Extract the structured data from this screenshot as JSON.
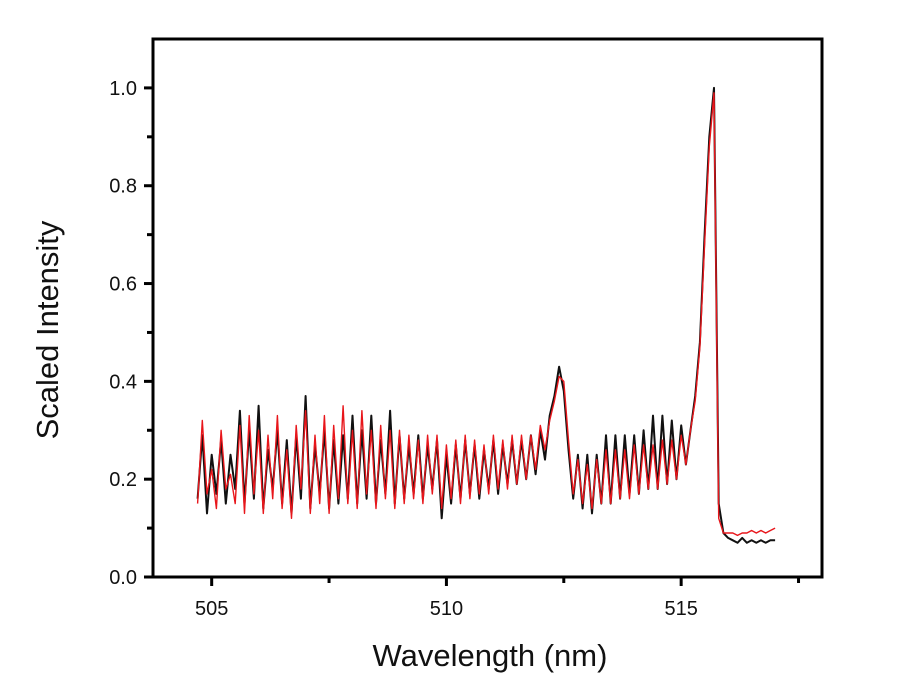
{
  "chart_data": {
    "type": "line",
    "title": "",
    "xlabel": "Wavelength (nm)",
    "ylabel": "Scaled Intensity",
    "xlim": [
      503.75,
      518
    ],
    "ylim": [
      0,
      1.1
    ],
    "xticks": [
      "505",
      "510",
      "515"
    ],
    "xtick_values": [
      505,
      510,
      515
    ],
    "xminor": [
      507.5,
      512.5,
      517.5
    ],
    "yticks": [
      "0.0",
      "0.2",
      "0.4",
      "0.6",
      "0.8",
      "1.0"
    ],
    "ytick_values": [
      0,
      0.2,
      0.4,
      0.6,
      0.8,
      1.0
    ],
    "grid": false,
    "legend": "none",
    "x": [
      504.7,
      504.8,
      504.9,
      505.0,
      505.1,
      505.2,
      505.3,
      505.4,
      505.5,
      505.6,
      505.7,
      505.8,
      505.9,
      506.0,
      506.1,
      506.2,
      506.3,
      506.4,
      506.5,
      506.6,
      506.7,
      506.8,
      506.9,
      507.0,
      507.1,
      507.2,
      507.3,
      507.4,
      507.5,
      507.6,
      507.7,
      507.8,
      507.9,
      508.0,
      508.1,
      508.2,
      508.3,
      508.4,
      508.5,
      508.6,
      508.7,
      508.8,
      508.9,
      509.0,
      509.1,
      509.2,
      509.3,
      509.4,
      509.5,
      509.6,
      509.7,
      509.8,
      509.9,
      510.0,
      510.1,
      510.2,
      510.3,
      510.4,
      510.5,
      510.6,
      510.7,
      510.8,
      510.9,
      511.0,
      511.1,
      511.2,
      511.3,
      511.4,
      511.5,
      511.6,
      511.7,
      511.8,
      511.9,
      512.0,
      512.1,
      512.2,
      512.3,
      512.4,
      512.5,
      512.6,
      512.7,
      512.8,
      512.9,
      513.0,
      513.1,
      513.2,
      513.3,
      513.4,
      513.5,
      513.6,
      513.7,
      513.8,
      513.9,
      514.0,
      514.1,
      514.2,
      514.3,
      514.4,
      514.5,
      514.6,
      514.7,
      514.8,
      514.9,
      515.0,
      515.1,
      515.2,
      515.3,
      515.4,
      515.5,
      515.6,
      515.7,
      515.8,
      515.9,
      516.0,
      516.1,
      516.2,
      516.3,
      516.4,
      516.5,
      516.6,
      516.7,
      516.8,
      516.9,
      517.0
    ],
    "series": [
      {
        "color": "#111111",
        "values": [
          0.16,
          0.29,
          0.13,
          0.25,
          0.17,
          0.28,
          0.15,
          0.25,
          0.18,
          0.34,
          0.15,
          0.3,
          0.16,
          0.35,
          0.14,
          0.26,
          0.18,
          0.3,
          0.15,
          0.28,
          0.13,
          0.29,
          0.16,
          0.37,
          0.14,
          0.27,
          0.17,
          0.3,
          0.14,
          0.28,
          0.15,
          0.29,
          0.16,
          0.33,
          0.15,
          0.3,
          0.16,
          0.33,
          0.15,
          0.28,
          0.17,
          0.34,
          0.15,
          0.29,
          0.16,
          0.27,
          0.17,
          0.29,
          0.16,
          0.27,
          0.18,
          0.28,
          0.12,
          0.25,
          0.15,
          0.27,
          0.16,
          0.28,
          0.17,
          0.27,
          0.16,
          0.26,
          0.18,
          0.28,
          0.17,
          0.27,
          0.19,
          0.28,
          0.19,
          0.28,
          0.2,
          0.29,
          0.21,
          0.3,
          0.24,
          0.33,
          0.37,
          0.43,
          0.38,
          0.26,
          0.16,
          0.25,
          0.14,
          0.25,
          0.13,
          0.25,
          0.15,
          0.29,
          0.15,
          0.29,
          0.16,
          0.29,
          0.17,
          0.29,
          0.17,
          0.3,
          0.18,
          0.33,
          0.18,
          0.33,
          0.19,
          0.32,
          0.2,
          0.31,
          0.23,
          0.3,
          0.37,
          0.48,
          0.7,
          0.9,
          1.0,
          0.15,
          0.09,
          0.08,
          0.075,
          0.07,
          0.08,
          0.07,
          0.075,
          0.07,
          0.075,
          0.07,
          0.075,
          0.075
        ]
      },
      {
        "color": "#e8161b",
        "values": [
          0.15,
          0.32,
          0.17,
          0.22,
          0.14,
          0.3,
          0.18,
          0.21,
          0.15,
          0.31,
          0.13,
          0.33,
          0.17,
          0.3,
          0.13,
          0.29,
          0.16,
          0.33,
          0.14,
          0.26,
          0.12,
          0.31,
          0.18,
          0.34,
          0.13,
          0.29,
          0.15,
          0.33,
          0.13,
          0.31,
          0.16,
          0.35,
          0.15,
          0.3,
          0.14,
          0.34,
          0.17,
          0.3,
          0.14,
          0.31,
          0.16,
          0.3,
          0.14,
          0.3,
          0.15,
          0.29,
          0.16,
          0.28,
          0.15,
          0.29,
          0.17,
          0.29,
          0.14,
          0.27,
          0.16,
          0.28,
          0.15,
          0.29,
          0.16,
          0.28,
          0.17,
          0.27,
          0.17,
          0.29,
          0.18,
          0.28,
          0.18,
          0.29,
          0.19,
          0.29,
          0.2,
          0.29,
          0.22,
          0.31,
          0.26,
          0.32,
          0.36,
          0.41,
          0.4,
          0.28,
          0.17,
          0.24,
          0.15,
          0.23,
          0.14,
          0.24,
          0.15,
          0.26,
          0.15,
          0.26,
          0.16,
          0.26,
          0.16,
          0.27,
          0.17,
          0.27,
          0.18,
          0.27,
          0.18,
          0.28,
          0.19,
          0.28,
          0.2,
          0.29,
          0.23,
          0.3,
          0.36,
          0.47,
          0.68,
          0.88,
          0.99,
          0.12,
          0.09,
          0.09,
          0.09,
          0.085,
          0.09,
          0.09,
          0.095,
          0.09,
          0.095,
          0.09,
          0.095,
          0.1
        ]
      }
    ]
  }
}
